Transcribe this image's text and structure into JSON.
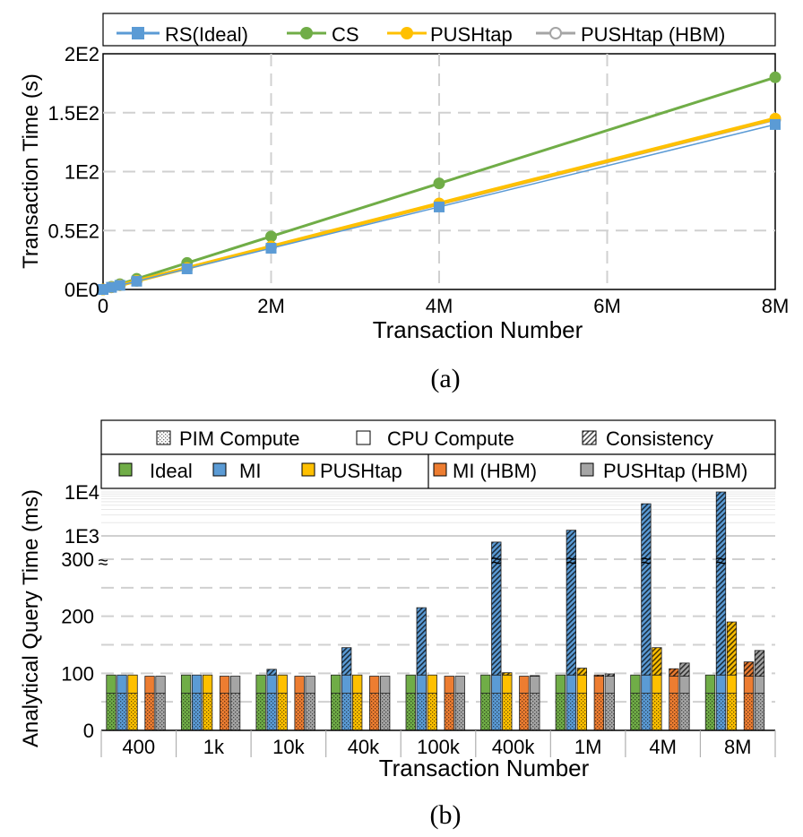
{
  "colors": {
    "rs_ideal": "#5b9bd5",
    "cs": "#70ad47",
    "pushtap": "#ffc000",
    "pushtap_hbm": "#a5a5a5",
    "ideal": "#70ad47",
    "mi": "#5b9bd5",
    "mi_hbm": "#ed7d31",
    "grid": "#d0d0d0"
  },
  "chart_data": [
    {
      "type": "line",
      "caption": "(a)",
      "xlabel": "Transaction Number",
      "ylabel": "Transaction Time (s)",
      "x": [
        0,
        100000,
        200000,
        400000,
        1000000,
        2000000,
        4000000,
        8000000
      ],
      "x_ticks": [
        0,
        2000000,
        4000000,
        6000000,
        8000000
      ],
      "x_tick_labels": [
        "0",
        "2M",
        "4M",
        "6M",
        "8M"
      ],
      "y_ticks": [
        0,
        50,
        100,
        150,
        200
      ],
      "y_tick_labels": [
        "0E0",
        "0.5E2",
        "1E2",
        "1.5E2",
        "2E2"
      ],
      "xlim": [
        0,
        8000000
      ],
      "ylim": [
        0,
        200
      ],
      "grid": true,
      "legend_position": "top",
      "series": [
        {
          "name": "RS(Ideal)",
          "marker": "square",
          "values": [
            0,
            1.8,
            3.5,
            7,
            17.5,
            35,
            70,
            140
          ]
        },
        {
          "name": "CS",
          "marker": "circle",
          "values": [
            0,
            2.3,
            4.5,
            9,
            22.5,
            45,
            90,
            180
          ]
        },
        {
          "name": "PUSHtap",
          "marker": "circle",
          "values": [
            0,
            1.8,
            3.6,
            7.3,
            18.2,
            36.5,
            73,
            145
          ]
        },
        {
          "name": "PUSHtap (HBM)",
          "marker": "hollow-circle",
          "values": [
            0,
            1.8,
            3.6,
            7.2,
            18,
            36,
            72,
            144
          ]
        }
      ]
    },
    {
      "type": "bar",
      "caption": "(b)",
      "xlabel": "Transaction Number",
      "ylabel": "Analytical Query Time (ms)",
      "categories": [
        "400",
        "1k",
        "10k",
        "40k",
        "100k",
        "400k",
        "1M",
        "4M",
        "8M"
      ],
      "y_tick_labels_lower": [
        "0",
        "100",
        "200",
        "300"
      ],
      "y_tick_labels_upper": [
        "1E3",
        "1E4"
      ],
      "y_scale": "broken: linear 0-300, log above",
      "grid": true,
      "legend_position": "top",
      "pattern_legend": [
        "PIM Compute",
        "CPU Compute",
        "Consistency"
      ],
      "stack_components": [
        "PIM Compute",
        "CPU Compute",
        "Consistency"
      ],
      "series": [
        {
          "name": "Ideal",
          "pim": [
            65,
            65,
            65,
            65,
            65,
            65,
            65,
            65,
            65
          ],
          "cpu": [
            32,
            32,
            32,
            32,
            32,
            32,
            32,
            32,
            32
          ],
          "consistency": [
            0,
            0,
            0,
            0,
            0,
            0,
            0,
            0,
            0
          ]
        },
        {
          "name": "MI",
          "pim": [
            65,
            65,
            65,
            65,
            65,
            65,
            65,
            65,
            65
          ],
          "cpu": [
            32,
            32,
            32,
            32,
            32,
            32,
            32,
            32,
            32
          ],
          "consistency": [
            0,
            0,
            10,
            48,
            118,
            630,
            1250,
            5300,
            10300
          ]
        },
        {
          "name": "PUSHtap",
          "pim": [
            65,
            65,
            65,
            65,
            65,
            65,
            65,
            65,
            65
          ],
          "cpu": [
            32,
            32,
            32,
            32,
            32,
            32,
            32,
            32,
            32
          ],
          "consistency": [
            0,
            0,
            0,
            0,
            0,
            4,
            12,
            48,
            93
          ]
        },
        {
          "name": "MI (HBM)",
          "pim": [
            65,
            65,
            65,
            65,
            65,
            65,
            65,
            65,
            65
          ],
          "cpu": [
            30,
            30,
            30,
            30,
            30,
            30,
            30,
            30,
            30
          ],
          "consistency": [
            0,
            0,
            0,
            0,
            0,
            0,
            2,
            13,
            25
          ]
        },
        {
          "name": "PUSHtap (HBM)",
          "pim": [
            65,
            65,
            65,
            65,
            65,
            65,
            65,
            65,
            65
          ],
          "cpu": [
            30,
            30,
            30,
            30,
            30,
            30,
            30,
            30,
            30
          ],
          "consistency": [
            0,
            0,
            0,
            0,
            0,
            1,
            4,
            23,
            45
          ]
        }
      ]
    }
  ]
}
